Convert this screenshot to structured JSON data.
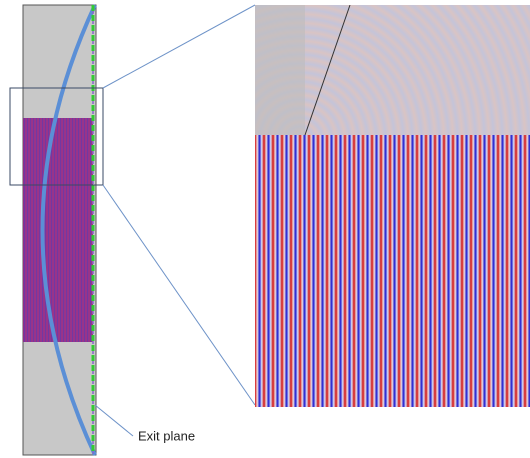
{
  "labels": {
    "exit_plane": "Exit plane"
  }
}
